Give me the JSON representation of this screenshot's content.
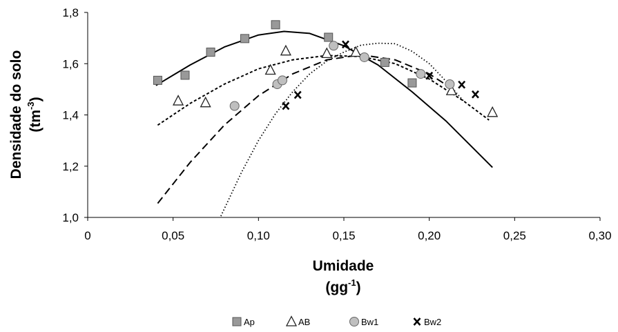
{
  "chart_data": {
    "type": "scatter",
    "xlabel": "Umidade",
    "xlabel_unit_base": "(gg",
    "xlabel_unit_sup": "-1",
    "xlabel_unit_end": ")",
    "ylabel": "Densidade do solo",
    "ylabel_unit_base": "(tm",
    "ylabel_unit_sup": "-3",
    "ylabel_unit_end": ")",
    "xlim": [
      0,
      0.3
    ],
    "ylim": [
      1.0,
      1.8
    ],
    "x_ticks": [
      0,
      0.05,
      0.1,
      0.15,
      0.2,
      0.25,
      0.3
    ],
    "x_tick_labels": [
      "0",
      "0,05",
      "0,10",
      "0,15",
      "0,20",
      "0,25",
      "0,30"
    ],
    "y_ticks": [
      1.0,
      1.2,
      1.4,
      1.6,
      1.8
    ],
    "y_tick_labels": [
      "1,0",
      "1,2",
      "1,4",
      "1,6",
      "1,8"
    ],
    "grid": false,
    "legend_position": "bottom",
    "series": [
      {
        "name": "Ap",
        "marker": "square",
        "line_style": "solid",
        "color": "#999999",
        "points": [
          [
            0.041,
            1.535
          ],
          [
            0.057,
            1.555
          ],
          [
            0.072,
            1.645
          ],
          [
            0.092,
            1.698
          ],
          [
            0.11,
            1.752
          ],
          [
            0.141,
            1.703
          ],
          [
            0.174,
            1.605
          ],
          [
            0.19,
            1.525
          ]
        ],
        "fit_curve": [
          [
            0.04,
            1.515
          ],
          [
            0.06,
            1.595
          ],
          [
            0.08,
            1.665
          ],
          [
            0.1,
            1.712
          ],
          [
            0.115,
            1.726
          ],
          [
            0.13,
            1.718
          ],
          [
            0.15,
            1.67
          ],
          [
            0.17,
            1.595
          ],
          [
            0.19,
            1.49
          ],
          [
            0.21,
            1.375
          ],
          [
            0.237,
            1.195
          ]
        ]
      },
      {
        "name": "AB",
        "marker": "triangle",
        "line_style": "small-dash",
        "color": "#ffffff",
        "points": [
          [
            0.053,
            1.455
          ],
          [
            0.069,
            1.448
          ],
          [
            0.107,
            1.575
          ],
          [
            0.116,
            1.65
          ],
          [
            0.14,
            1.64
          ],
          [
            0.157,
            1.645
          ],
          [
            0.213,
            1.495
          ],
          [
            0.237,
            1.41
          ]
        ],
        "fit_curve": [
          [
            0.041,
            1.36
          ],
          [
            0.06,
            1.445
          ],
          [
            0.08,
            1.52
          ],
          [
            0.1,
            1.58
          ],
          [
            0.12,
            1.615
          ],
          [
            0.14,
            1.632
          ],
          [
            0.16,
            1.628
          ],
          [
            0.18,
            1.6
          ],
          [
            0.2,
            1.54
          ],
          [
            0.22,
            1.455
          ],
          [
            0.235,
            1.38
          ]
        ]
      },
      {
        "name": "Bw1",
        "marker": "circle",
        "line_style": "long-dash",
        "color": "#bfbfbf",
        "points": [
          [
            0.086,
            1.435
          ],
          [
            0.111,
            1.52
          ],
          [
            0.114,
            1.535
          ],
          [
            0.144,
            1.67
          ],
          [
            0.162,
            1.625
          ],
          [
            0.195,
            1.56
          ],
          [
            0.212,
            1.52
          ]
        ],
        "fit_curve": [
          [
            0.041,
            1.055
          ],
          [
            0.06,
            1.215
          ],
          [
            0.08,
            1.36
          ],
          [
            0.1,
            1.475
          ],
          [
            0.12,
            1.56
          ],
          [
            0.14,
            1.615
          ],
          [
            0.16,
            1.635
          ],
          [
            0.18,
            1.615
          ],
          [
            0.2,
            1.56
          ],
          [
            0.215,
            1.495
          ]
        ]
      },
      {
        "name": "Bw2",
        "marker": "x",
        "line_style": "dotted",
        "color": "#000000",
        "points": [
          [
            0.116,
            1.435
          ],
          [
            0.123,
            1.478
          ],
          [
            0.151,
            1.675
          ],
          [
            0.2,
            1.553
          ],
          [
            0.219,
            1.518
          ],
          [
            0.227,
            1.48
          ]
        ],
        "fit_curve": [
          [
            0.078,
            1.005
          ],
          [
            0.09,
            1.175
          ],
          [
            0.1,
            1.3
          ],
          [
            0.11,
            1.405
          ],
          [
            0.12,
            1.49
          ],
          [
            0.13,
            1.56
          ],
          [
            0.14,
            1.61
          ],
          [
            0.15,
            1.645
          ],
          [
            0.16,
            1.672
          ],
          [
            0.17,
            1.68
          ],
          [
            0.18,
            1.678
          ],
          [
            0.19,
            1.648
          ],
          [
            0.2,
            1.6
          ],
          [
            0.21,
            1.53
          ],
          [
            0.22,
            1.455
          ]
        ]
      }
    ]
  }
}
